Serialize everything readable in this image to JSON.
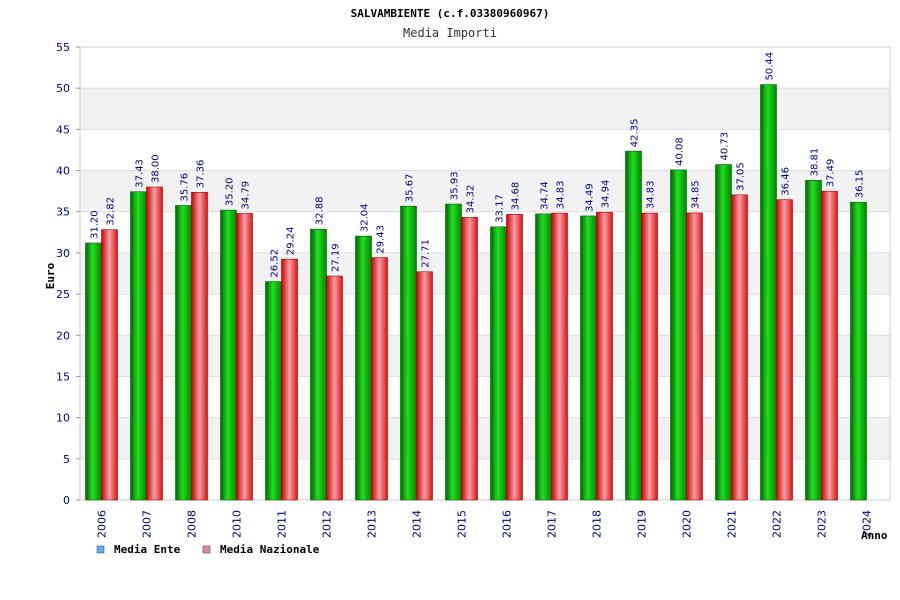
{
  "chart_data": {
    "type": "bar",
    "title": "SALVAMBIENTE (c.f.03380960967)",
    "subtitle": "Media Importi",
    "xlabel": "Anno",
    "ylabel": "Euro",
    "ylim": [
      0,
      55
    ],
    "yticks": [
      "0",
      "5",
      "10",
      "15",
      "20",
      "25",
      "30",
      "35",
      "40",
      "45",
      "50",
      "55"
    ],
    "categories": [
      "2006",
      "2007",
      "2008",
      "2010",
      "2011",
      "2012",
      "2013",
      "2014",
      "2015",
      "2016",
      "2017",
      "2018",
      "2019",
      "2020",
      "2021",
      "2022",
      "2023",
      "2024"
    ],
    "series": [
      {
        "name": "Media Ente",
        "color": "#00bb00",
        "values": [
          31.2,
          37.43,
          35.76,
          35.2,
          26.52,
          32.88,
          32.04,
          35.67,
          35.93,
          33.17,
          34.74,
          34.49,
          42.35,
          40.08,
          40.73,
          50.44,
          38.81,
          36.15
        ],
        "labels": [
          "31.20",
          "37.43",
          "35.76",
          "35.20",
          "26.52",
          "32.88",
          "32.04",
          "35.67",
          "35.93",
          "33.17",
          "34.74",
          "34.49",
          "42.35",
          "40.08",
          "40.73",
          "50.44",
          "38.81",
          "36.15"
        ]
      },
      {
        "name": "Media Nazionale",
        "color": "#ee2222",
        "values": [
          32.82,
          38.0,
          37.36,
          34.79,
          29.24,
          27.19,
          29.43,
          27.71,
          34.32,
          34.68,
          34.83,
          34.94,
          34.83,
          34.85,
          37.05,
          36.46,
          37.49,
          null
        ],
        "labels": [
          "32.82",
          "38.00",
          "37.36",
          "34.79",
          "29.24",
          "27.19",
          "29.43",
          "27.71",
          "34.32",
          "34.68",
          "34.83",
          "34.94",
          "34.83",
          "34.85",
          "37.05",
          "36.46",
          "37.49",
          ""
        ]
      }
    ],
    "legend": [
      {
        "label": "Media Ente",
        "color": "#66aaee"
      },
      {
        "label": "Media Nazionale",
        "color": "#dd88aa"
      }
    ],
    "grid": true,
    "legend_position": "bottom-left"
  }
}
